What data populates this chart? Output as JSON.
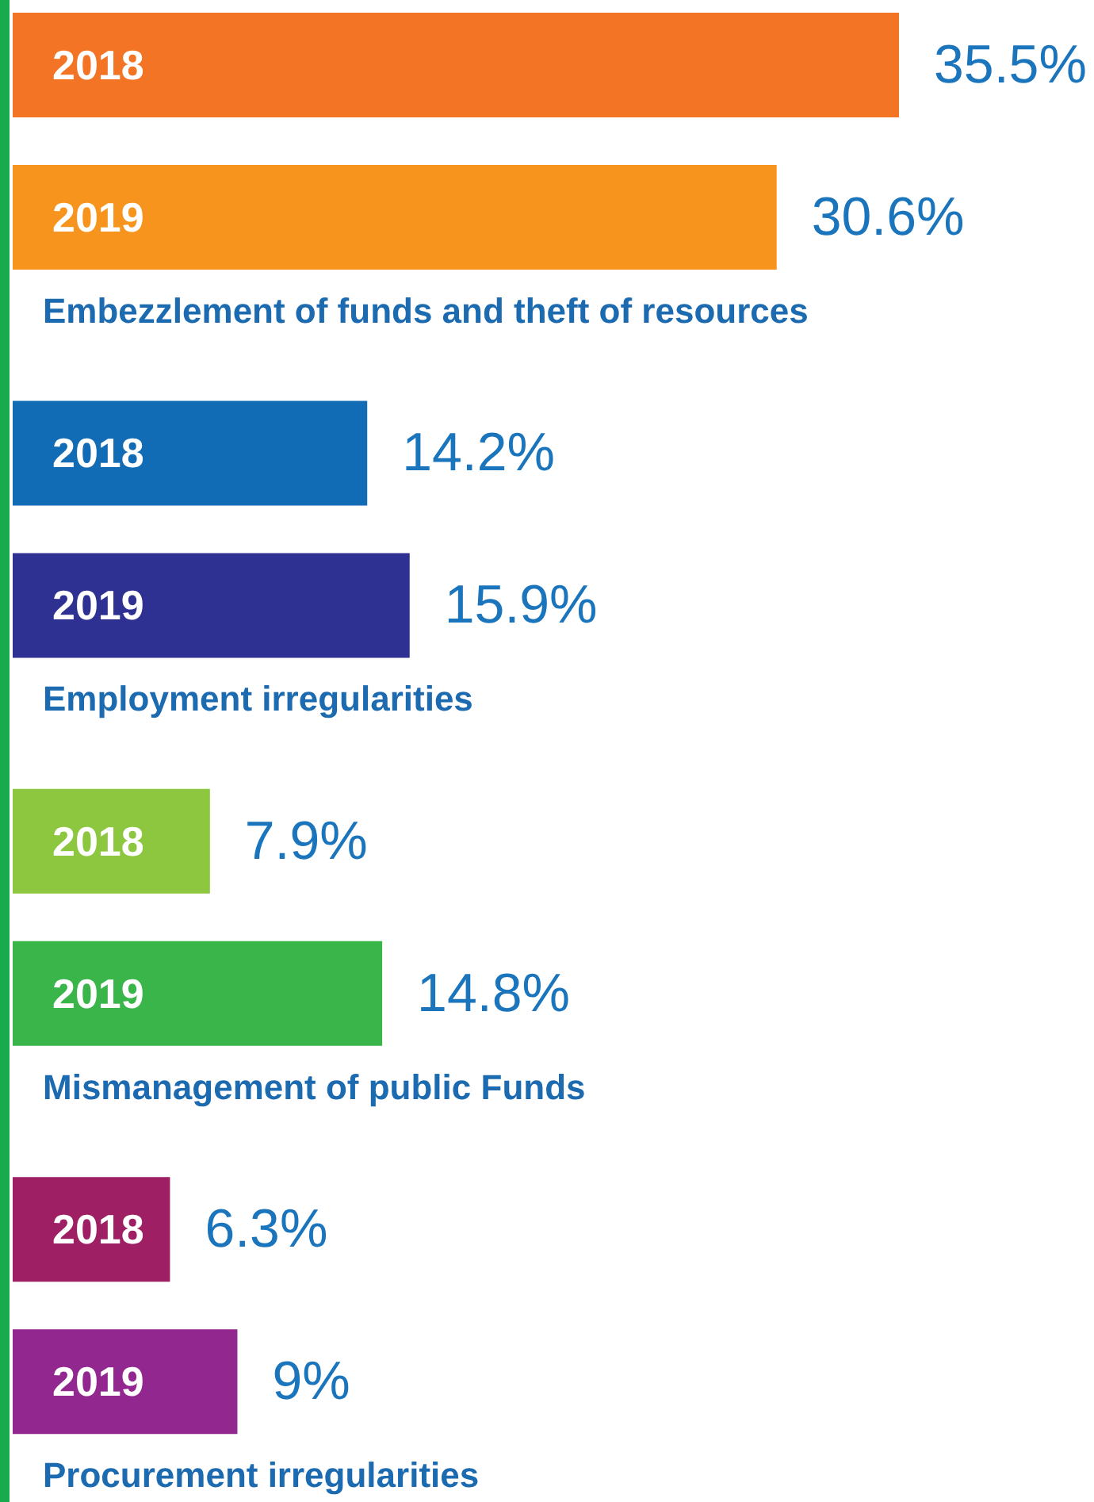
{
  "chart_data": {
    "type": "bar",
    "orientation": "horizontal",
    "categories": [
      "2018",
      "2019",
      "2018",
      "2019",
      "2018",
      "2019",
      "2018",
      "2019"
    ],
    "values": [
      35.5,
      30.6,
      14.2,
      15.9,
      7.9,
      14.8,
      6.3,
      9
    ],
    "colors": [
      "#f27424",
      "#f7941d",
      "#116bb5",
      "#2e3192",
      "#8dc63f",
      "#39b54a",
      "#9e1f63",
      "#92278f"
    ],
    "value_labels": [
      "35.5%",
      "30.6%",
      "14.2%",
      "15.9%",
      "7.9%",
      "14.8%",
      "6.3%",
      "9%"
    ],
    "annotations": [
      "Embezzlement of funds and theft of resources",
      "Employment irregularities",
      "Mismanagement of public Funds",
      "Procurement irregularities"
    ]
  }
}
